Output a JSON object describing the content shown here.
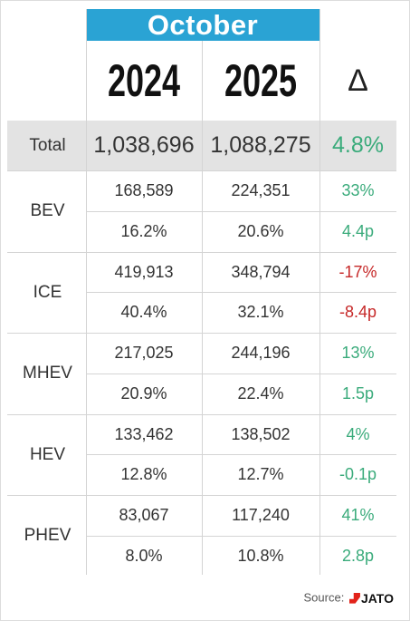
{
  "colors": {
    "header_bg": "#2aa3d4",
    "total_bg": "#e3e3e3",
    "positive": "#3aab7b",
    "negative": "#c62828"
  },
  "header": {
    "month": "October",
    "years": [
      "2024",
      "2025"
    ],
    "delta_symbol": "Δ"
  },
  "total": {
    "label": "Total",
    "v2024": "1,038,696",
    "v2025": "1,088,275",
    "change": "4.8%",
    "sign": "positive"
  },
  "chart_data": {
    "type": "table",
    "title": "October",
    "columns": [
      "",
      "2024",
      "2025",
      "Δ"
    ],
    "groups": [
      {
        "label": "BEV",
        "volume": {
          "v2024": "168,589",
          "v2025": "224,351",
          "change": "33%",
          "sign": "positive"
        },
        "share": {
          "v2024": "16.2%",
          "v2025": "20.6%",
          "change": "4.4p",
          "sign": "positive"
        }
      },
      {
        "label": "ICE",
        "volume": {
          "v2024": "419,913",
          "v2025": "348,794",
          "change": "-17%",
          "sign": "negative"
        },
        "share": {
          "v2024": "40.4%",
          "v2025": "32.1%",
          "change": "-8.4p",
          "sign": "negative"
        }
      },
      {
        "label": "MHEV",
        "volume": {
          "v2024": "217,025",
          "v2025": "244,196",
          "change": "13%",
          "sign": "positive"
        },
        "share": {
          "v2024": "20.9%",
          "v2025": "22.4%",
          "change": "1.5p",
          "sign": "positive"
        }
      },
      {
        "label": "HEV",
        "volume": {
          "v2024": "133,462",
          "v2025": "138,502",
          "change": "4%",
          "sign": "positive"
        },
        "share": {
          "v2024": "12.8%",
          "v2025": "12.7%",
          "change": "-0.1p",
          "sign": "positive"
        }
      },
      {
        "label": "PHEV",
        "volume": {
          "v2024": "83,067",
          "v2025": "117,240",
          "change": "41%",
          "sign": "positive"
        },
        "share": {
          "v2024": "8.0%",
          "v2025": "10.8%",
          "change": "2.8p",
          "sign": "positive"
        }
      }
    ]
  },
  "footer": {
    "source_label": "Source:",
    "logo_text": "JATO",
    "logo_icon": "jato-logo-icon"
  }
}
